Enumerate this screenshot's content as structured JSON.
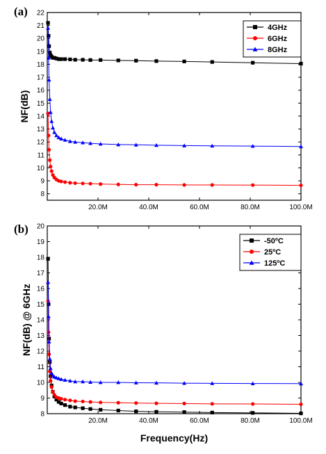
{
  "chart_data": [
    {
      "type": "line",
      "panel_label": "(a)",
      "xlabel": "",
      "ylabel": "NF(dB)",
      "xlim": [
        0,
        100
      ],
      "ylim": [
        7.5,
        22
      ],
      "x_ticks": [
        20,
        40,
        60,
        80,
        100
      ],
      "x_tick_labels": [
        "20.0M",
        "40.0M",
        "60.0M",
        "80.0M",
        "100.0M"
      ],
      "y_ticks": [
        8,
        9,
        10,
        11,
        12,
        13,
        14,
        15,
        16,
        17,
        18,
        19,
        20,
        21,
        22
      ],
      "y_tick_labels": [
        "8",
        "9",
        "10",
        "11",
        "12",
        "13",
        "14",
        "15",
        "16",
        "17",
        "18",
        "19",
        "20",
        "21",
        "22"
      ],
      "grid": false,
      "legend_position": "top-right",
      "series": [
        {
          "name": "4GHz",
          "color": "#000000",
          "marker": "square",
          "x": [
            0.3,
            0.5,
            0.7,
            1.0,
            1.3,
            1.7,
            2.2,
            2.8,
            3.6,
            4.5,
            5.5,
            7,
            9,
            11,
            14,
            17,
            21,
            28,
            35,
            43,
            54,
            65,
            81,
            100
          ],
          "y": [
            21.2,
            20.2,
            19.4,
            18.9,
            18.7,
            18.6,
            18.5,
            18.5,
            18.45,
            18.4,
            18.4,
            18.4,
            18.38,
            18.35,
            18.35,
            18.33,
            18.33,
            18.3,
            18.28,
            18.25,
            18.22,
            18.18,
            18.12,
            18.05
          ]
        },
        {
          "name": "6GHz",
          "color": "#ff0000",
          "marker": "circle",
          "x": [
            0.3,
            0.5,
            0.7,
            1.0,
            1.3,
            1.7,
            2.2,
            2.8,
            3.6,
            4.5,
            5.5,
            7,
            9,
            11,
            14,
            17,
            21,
            28,
            35,
            43,
            54,
            65,
            81,
            100
          ],
          "y": [
            14.2,
            12.5,
            11.4,
            10.6,
            10.1,
            9.75,
            9.45,
            9.25,
            9.1,
            9.0,
            8.95,
            8.9,
            8.85,
            8.82,
            8.8,
            8.78,
            8.75,
            8.72,
            8.7,
            8.7,
            8.68,
            8.68,
            8.67,
            8.65
          ]
        },
        {
          "name": "8GHz",
          "color": "#0000ff",
          "marker": "triangle",
          "x": [
            0.3,
            0.5,
            0.7,
            1.0,
            1.3,
            1.7,
            2.2,
            2.8,
            3.6,
            4.5,
            5.5,
            7,
            9,
            11,
            14,
            17,
            21,
            28,
            35,
            43,
            54,
            65,
            81,
            100
          ],
          "y": [
            20.8,
            18.5,
            16.8,
            15.3,
            14.3,
            13.6,
            13.1,
            12.75,
            12.5,
            12.35,
            12.25,
            12.15,
            12.05,
            12.0,
            11.95,
            11.9,
            11.85,
            11.8,
            11.78,
            11.75,
            11.72,
            11.7,
            11.68,
            11.65
          ]
        }
      ]
    },
    {
      "type": "line",
      "panel_label": "(b)",
      "xlabel": "Frequency(Hz)",
      "ylabel": "NF(dB) @ 6GHz",
      "xlim": [
        0,
        100
      ],
      "ylim": [
        8,
        20
      ],
      "x_ticks": [
        20,
        40,
        60,
        80,
        100
      ],
      "x_tick_labels": [
        "20.0M",
        "40.0M",
        "60.0M",
        "80.0M",
        "100.0M"
      ],
      "y_ticks": [
        8,
        9,
        10,
        11,
        12,
        13,
        14,
        15,
        16,
        17,
        18,
        19,
        20
      ],
      "y_tick_labels": [
        "8",
        "9",
        "10",
        "11",
        "12",
        "13",
        "14",
        "15",
        "16",
        "17",
        "18",
        "19",
        "20"
      ],
      "grid": false,
      "legend_position": "top-right",
      "series": [
        {
          "name": "-50ºC",
          "color": "#000000",
          "marker": "square",
          "x": [
            0.3,
            0.5,
            0.7,
            1.0,
            1.3,
            1.7,
            2.2,
            2.8,
            3.6,
            4.5,
            5.5,
            7,
            9,
            11,
            14,
            17,
            21,
            28,
            35,
            43,
            54,
            65,
            81,
            100
          ],
          "y": [
            17.9,
            15.0,
            12.8,
            11.3,
            10.4,
            9.8,
            9.4,
            9.1,
            8.9,
            8.75,
            8.65,
            8.55,
            8.45,
            8.4,
            8.35,
            8.3,
            8.25,
            8.2,
            8.15,
            8.12,
            8.1,
            8.07,
            8.05,
            8.02
          ]
        },
        {
          "name": "25ºC",
          "color": "#ff0000",
          "marker": "circle",
          "x": [
            0.3,
            0.5,
            0.7,
            1.0,
            1.3,
            1.7,
            2.2,
            2.8,
            3.6,
            4.5,
            5.5,
            7,
            9,
            11,
            14,
            17,
            21,
            28,
            35,
            43,
            54,
            65,
            81,
            100
          ],
          "y": [
            15.2,
            13.2,
            11.8,
            10.7,
            10.1,
            9.7,
            9.4,
            9.2,
            9.05,
            9.0,
            8.95,
            8.9,
            8.85,
            8.8,
            8.78,
            8.75,
            8.72,
            8.7,
            8.68,
            8.66,
            8.65,
            8.63,
            8.62,
            8.6
          ]
        },
        {
          "name": "125ºC",
          "color": "#0000ff",
          "marker": "triangle",
          "x": [
            0.3,
            0.5,
            0.7,
            1.0,
            1.3,
            1.7,
            2.2,
            2.8,
            3.6,
            4.5,
            5.5,
            7,
            9,
            11,
            14,
            17,
            21,
            28,
            35,
            43,
            54,
            65,
            81,
            100
          ],
          "y": [
            16.4,
            14.2,
            12.6,
            11.5,
            10.9,
            10.6,
            10.45,
            10.35,
            10.3,
            10.25,
            10.2,
            10.15,
            10.1,
            10.05,
            10.05,
            10.02,
            10.0,
            10.0,
            9.98,
            9.97,
            9.95,
            9.94,
            9.93,
            9.92
          ]
        }
      ]
    }
  ]
}
